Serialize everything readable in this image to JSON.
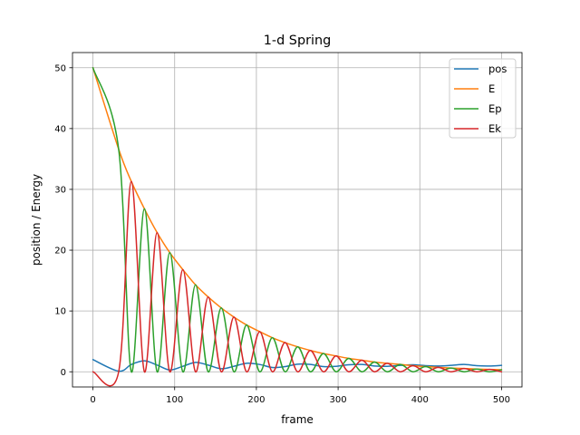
{
  "chart_data": {
    "type": "line",
    "title": "1-d Spring",
    "xlabel": "frame",
    "ylabel": "position / Energy",
    "xlim": [
      -25,
      525
    ],
    "ylim": [
      -2.5,
      52.5
    ],
    "xticks": [
      0,
      100,
      200,
      300,
      400,
      500
    ],
    "yticks": [
      0,
      10,
      20,
      30,
      40,
      50
    ],
    "grid": true,
    "legend": "top-right",
    "x": [
      0,
      31.5,
      47,
      63,
      78.5,
      94,
      110,
      125.5,
      141,
      157,
      172.5,
      188,
      204,
      219.5,
      235,
      250.5,
      266,
      282,
      297.5,
      313,
      329,
      344.5,
      360,
      376,
      391.5,
      407,
      422.5,
      438,
      454,
      469.5,
      485,
      500
    ],
    "series": [
      {
        "name": "pos",
        "color": "#1f77b4",
        "values": [
          2.0,
          0.1,
          1.2,
          1.8,
          1.1,
          0.3,
          0.9,
          1.55,
          1.1,
          0.5,
          0.9,
          1.4,
          1.2,
          0.7,
          0.85,
          1.25,
          1.2,
          0.85,
          0.9,
          1.15,
          1.2,
          0.95,
          0.9,
          1.05,
          1.15,
          1.0,
          0.95,
          1.05,
          1.2,
          1.0,
          0.95,
          1.05
        ]
      },
      {
        "name": "E",
        "color": "#ff7f0e",
        "values": [
          50.0,
          36.6,
          31.3,
          26.8,
          22.9,
          19.6,
          16.8,
          14.3,
          12.3,
          10.5,
          9.0,
          7.7,
          6.6,
          5.6,
          4.8,
          4.1,
          3.5,
          3.0,
          2.6,
          2.2,
          1.9,
          1.6,
          1.4,
          1.2,
          1.0,
          0.85,
          0.73,
          0.62,
          0.53,
          0.45,
          0.39,
          0.33
        ]
      },
      {
        "name": "Ep",
        "color": "#2ca02c",
        "values": [
          50.0,
          36.6,
          0.0,
          26.8,
          0.0,
          19.6,
          0.0,
          14.3,
          0.0,
          10.5,
          0.0,
          7.7,
          0.0,
          5.6,
          0.0,
          4.1,
          0.0,
          3.0,
          0.0,
          2.2,
          0.0,
          1.6,
          0.0,
          1.2,
          0.0,
          0.85,
          0.0,
          0.62,
          0.0,
          0.45,
          0.0,
          0.33
        ]
      },
      {
        "name": "Ek",
        "color": "#d62728",
        "values": [
          0.0,
          0.0,
          31.3,
          0.0,
          22.9,
          0.0,
          16.8,
          0.0,
          12.3,
          0.0,
          9.0,
          0.0,
          6.6,
          0.0,
          4.8,
          0.0,
          3.5,
          0.0,
          2.6,
          0.0,
          1.9,
          0.0,
          1.4,
          0.0,
          1.0,
          0.0,
          0.73,
          0.0,
          0.53,
          0.0,
          0.39,
          0.0
        ]
      }
    ]
  }
}
